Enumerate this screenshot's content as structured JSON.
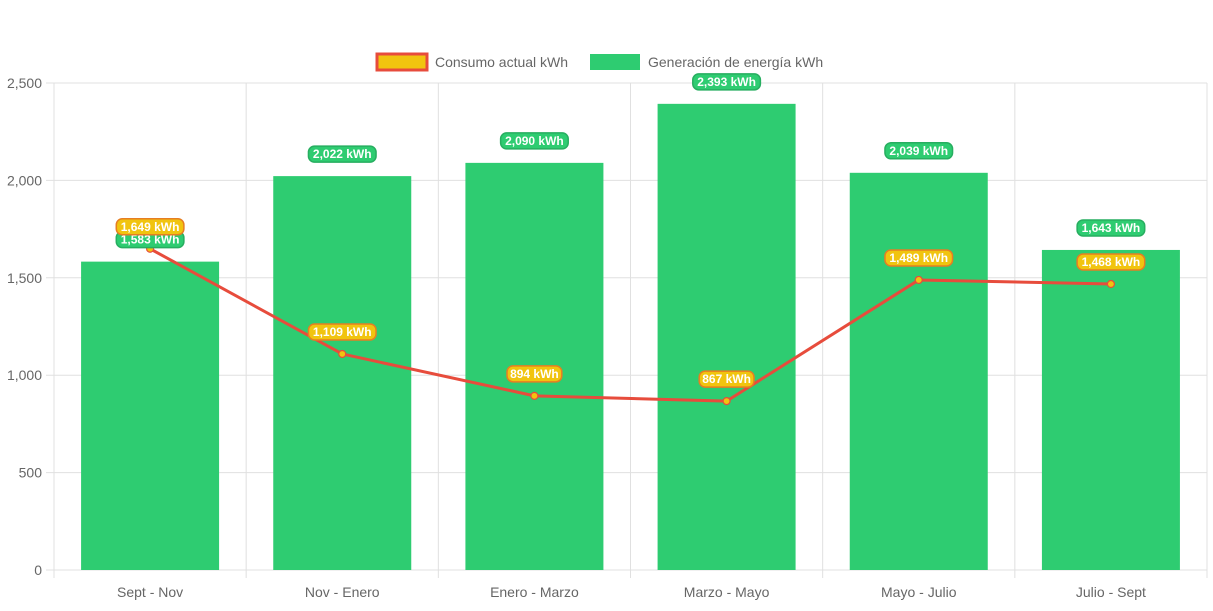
{
  "chart_data": {
    "type": "bar",
    "categories": [
      "Sept - Nov",
      "Nov - Enero",
      "Enero - Marzo",
      "Marzo - Mayo",
      "Mayo - Julio",
      "Julio - Sept"
    ],
    "series": [
      {
        "name": "Consumo actual kWh",
        "type": "line",
        "values": [
          1649,
          1109,
          894,
          867,
          1489,
          1468
        ],
        "labels": [
          "1,649 kWh",
          "1,109 kWh",
          "894 kWh",
          "867 kWh",
          "1,489 kWh",
          "1,468 kWh"
        ],
        "color": "#e74c3c",
        "fill": "#f1c40f"
      },
      {
        "name": "Generación de energía kWh",
        "type": "bar",
        "values": [
          1583,
          2022,
          2090,
          2393,
          2039,
          1643
        ],
        "labels": [
          "1,583 kWh",
          "2,022 kWh",
          "2,090 kWh",
          "2,393 kWh",
          "2,039 kWh",
          "1,643 kWh"
        ],
        "color": "#2ecc71"
      }
    ],
    "yticks": [
      "0",
      "500",
      "1,000",
      "1,500",
      "2,000",
      "2,500"
    ],
    "ylim": [
      0,
      2500
    ],
    "grid": true,
    "legend": "top-center",
    "title": "",
    "xlabel": "",
    "ylabel": ""
  }
}
